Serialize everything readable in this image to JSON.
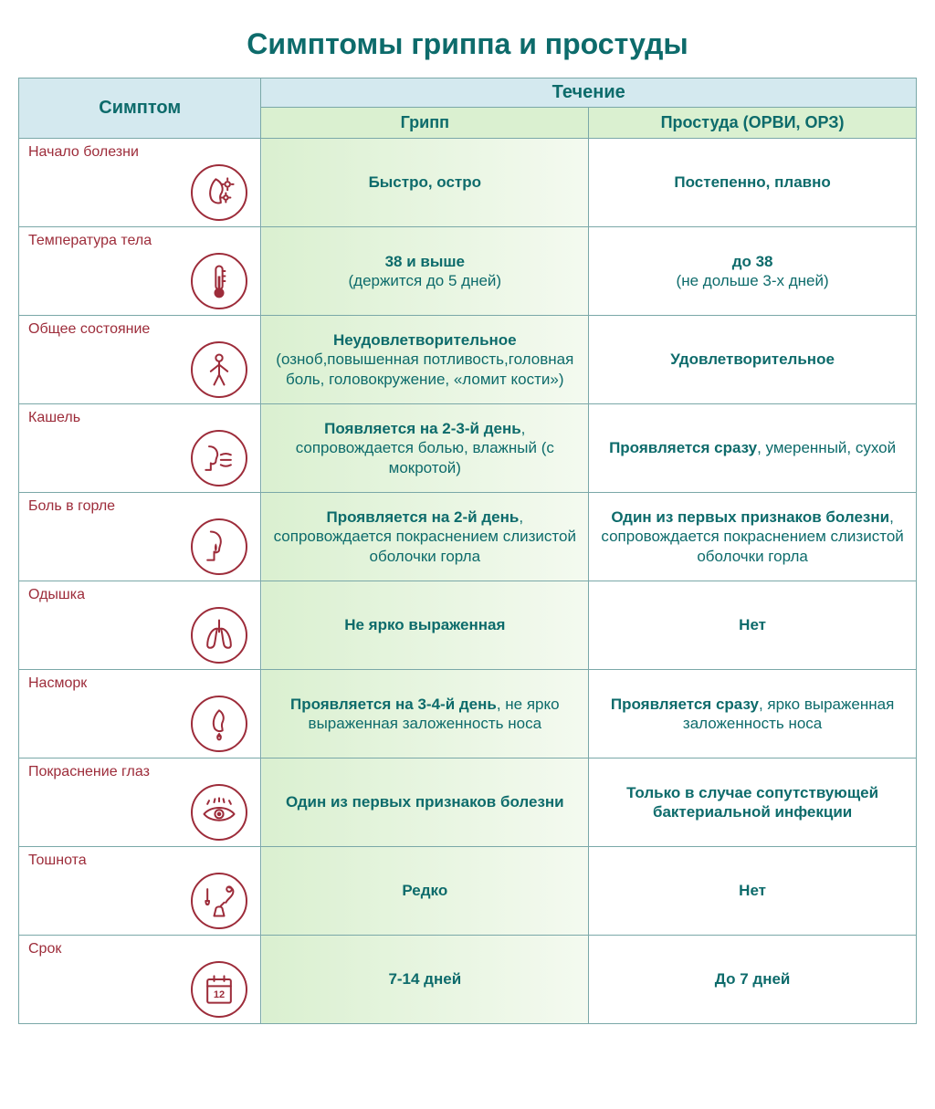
{
  "title": "Симптомы гриппа и простуды",
  "colors": {
    "title": "#0d6b6b",
    "header_bg": "#d4e9ef",
    "subheader_bg": "#daf0d0",
    "flu_bg_from": "#daf0d0",
    "flu_bg_to": "#f4faf0",
    "cold_bg": "#ffffff",
    "border": "#7aa8a8",
    "symptom_text": "#9d2c3a",
    "cell_text": "#0d6b6b",
    "icon_stroke": "#9d2c3a"
  },
  "headers": {
    "symptom": "Симптом",
    "course": "Течение",
    "flu": "Грипп",
    "cold": "Простуда (ОРВИ, ОРЗ)"
  },
  "rows": [
    {
      "symptom": "Начало болезни",
      "icon": "nose-virus",
      "flu_b": "Быстро, остро",
      "flu_n": "",
      "cold_b": "Постепенно, плавно",
      "cold_n": ""
    },
    {
      "symptom": "Температура тела",
      "icon": "thermometer",
      "flu_b": "38 и выше",
      "flu_n": "(держится до 5 дней)",
      "cold_b": "до 38",
      "cold_n": "(не дольше 3-х дней)"
    },
    {
      "symptom": "Общее состояние",
      "icon": "body",
      "flu_b": "Неудовлетворительное",
      "flu_n": "(озноб,повышенная потливость,головная боль, головокружение, «ломит кости»)",
      "cold_b": "Удовлетворительное",
      "cold_n": ""
    },
    {
      "symptom": "Кашель",
      "icon": "cough",
      "flu_b": "Появляется на 2-3-й день",
      "flu_n": ", сопровождается болью, влажный (с мокротой)",
      "cold_b": "Проявляется сразу",
      "cold_n": ", умеренный, сухой"
    },
    {
      "symptom": "Боль в горле",
      "icon": "throat",
      "flu_b": "Проявляется на 2-й день",
      "flu_n": ", сопровождается покраснением слизистой оболочки горла",
      "cold_b": "Один из первых признаков болезни",
      "cold_n": ", сопровождается покраснением слизистой оболочки горла"
    },
    {
      "symptom": "Одышка",
      "icon": "lungs",
      "flu_b": "Не ярко выраженная",
      "flu_n": "",
      "cold_b": "Нет",
      "cold_n": ""
    },
    {
      "symptom": "Насморк",
      "icon": "runny-nose",
      "flu_b": "Проявляется на 3-4-й день",
      "flu_n": ", не ярко выраженная заложенность носа",
      "cold_b": "Проявляется сразу",
      "cold_n": ", ярко выраженная заложенность носа"
    },
    {
      "symptom": "Покраснение глаз",
      "icon": "eye",
      "flu_b": "Один из первых признаков болезни",
      "flu_n": "",
      "cold_b": "Только в случае сопутствующей бактериальной инфекции",
      "cold_n": ""
    },
    {
      "symptom": "Тошнота",
      "icon": "nausea",
      "flu_b": "Редко",
      "flu_n": "",
      "cold_b": "Нет",
      "cold_n": ""
    },
    {
      "symptom": "Срок",
      "icon": "calendar",
      "flu_b": "7-14  дней",
      "flu_n": "",
      "cold_b": "До 7 дней",
      "cold_n": ""
    }
  ]
}
